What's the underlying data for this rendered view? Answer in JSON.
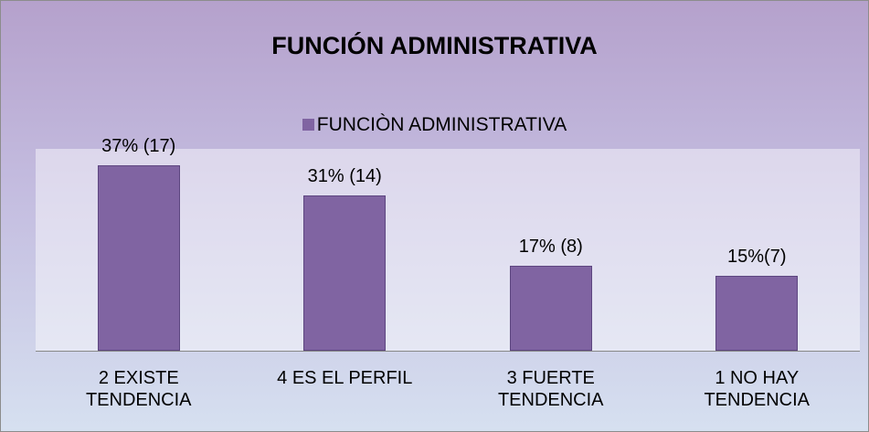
{
  "chart_data": {
    "type": "bar",
    "title": "FUNCIÓN ADMINISTRATIVA",
    "categories": [
      "2 EXISTE TENDENCIA",
      "4 ES EL PERFIL",
      "3 FUERTE TENDENCIA",
      "1 NO HAY TENDENCIA"
    ],
    "series": [
      {
        "name": "FUNCIÒN ADMINISTRATIVA",
        "color": "#8064a2",
        "values": [
          37,
          31,
          17,
          15
        ],
        "value_labels": [
          "37% (17)",
          "31% (14)",
          "17% (8)",
          "15%(7)"
        ]
      }
    ],
    "legend": "top"
  }
}
